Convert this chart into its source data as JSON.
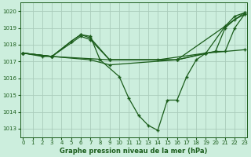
{
  "background_color": "#cceedd",
  "grid_color": "#aaccbb",
  "line_color": "#1a5c1a",
  "title": "Graphe pression niveau de la mer (hPa)",
  "xlim": [
    -0.3,
    23.3
  ],
  "ylim": [
    1012.5,
    1020.5
  ],
  "yticks": [
    1013,
    1014,
    1015,
    1016,
    1017,
    1018,
    1019,
    1020
  ],
  "xticks": [
    0,
    1,
    2,
    3,
    4,
    5,
    6,
    7,
    8,
    9,
    10,
    11,
    12,
    13,
    14,
    15,
    16,
    17,
    18,
    19,
    20,
    21,
    22,
    23
  ],
  "series1": {
    "x": [
      0,
      2,
      3,
      5,
      6,
      7,
      8,
      10,
      11,
      12,
      13,
      14,
      15,
      16,
      17,
      18,
      19,
      21,
      22,
      23
    ],
    "y": [
      1017.5,
      1017.3,
      1017.3,
      1018.2,
      1018.6,
      1018.5,
      1017.1,
      1016.1,
      1014.8,
      1013.8,
      1013.2,
      1012.9,
      1014.7,
      1014.7,
      1016.1,
      1017.1,
      1017.5,
      1019.1,
      1019.7,
      1019.9
    ]
  },
  "series2": {
    "x": [
      0,
      3,
      5,
      6,
      7,
      9,
      14,
      19,
      20,
      21,
      22,
      23
    ],
    "y": [
      1017.5,
      1017.3,
      1018.2,
      1018.6,
      1018.4,
      1017.1,
      1017.1,
      1017.5,
      1017.6,
      1017.6,
      1019.0,
      1019.8
    ]
  },
  "series3": {
    "x": [
      0,
      3,
      9,
      16,
      19,
      23
    ],
    "y": [
      1017.5,
      1017.3,
      1017.1,
      1017.1,
      1017.5,
      1017.7
    ]
  },
  "series4": {
    "x": [
      0,
      3,
      6,
      7,
      9,
      16,
      20,
      21,
      22,
      23
    ],
    "y": [
      1017.5,
      1017.3,
      1018.5,
      1018.3,
      1017.1,
      1017.1,
      1017.6,
      1019.0,
      1019.5,
      1019.8
    ]
  },
  "series5": {
    "x": [
      0,
      3,
      7,
      9,
      16,
      23
    ],
    "y": [
      1017.5,
      1017.3,
      1017.1,
      1016.8,
      1017.1,
      1019.9
    ]
  }
}
